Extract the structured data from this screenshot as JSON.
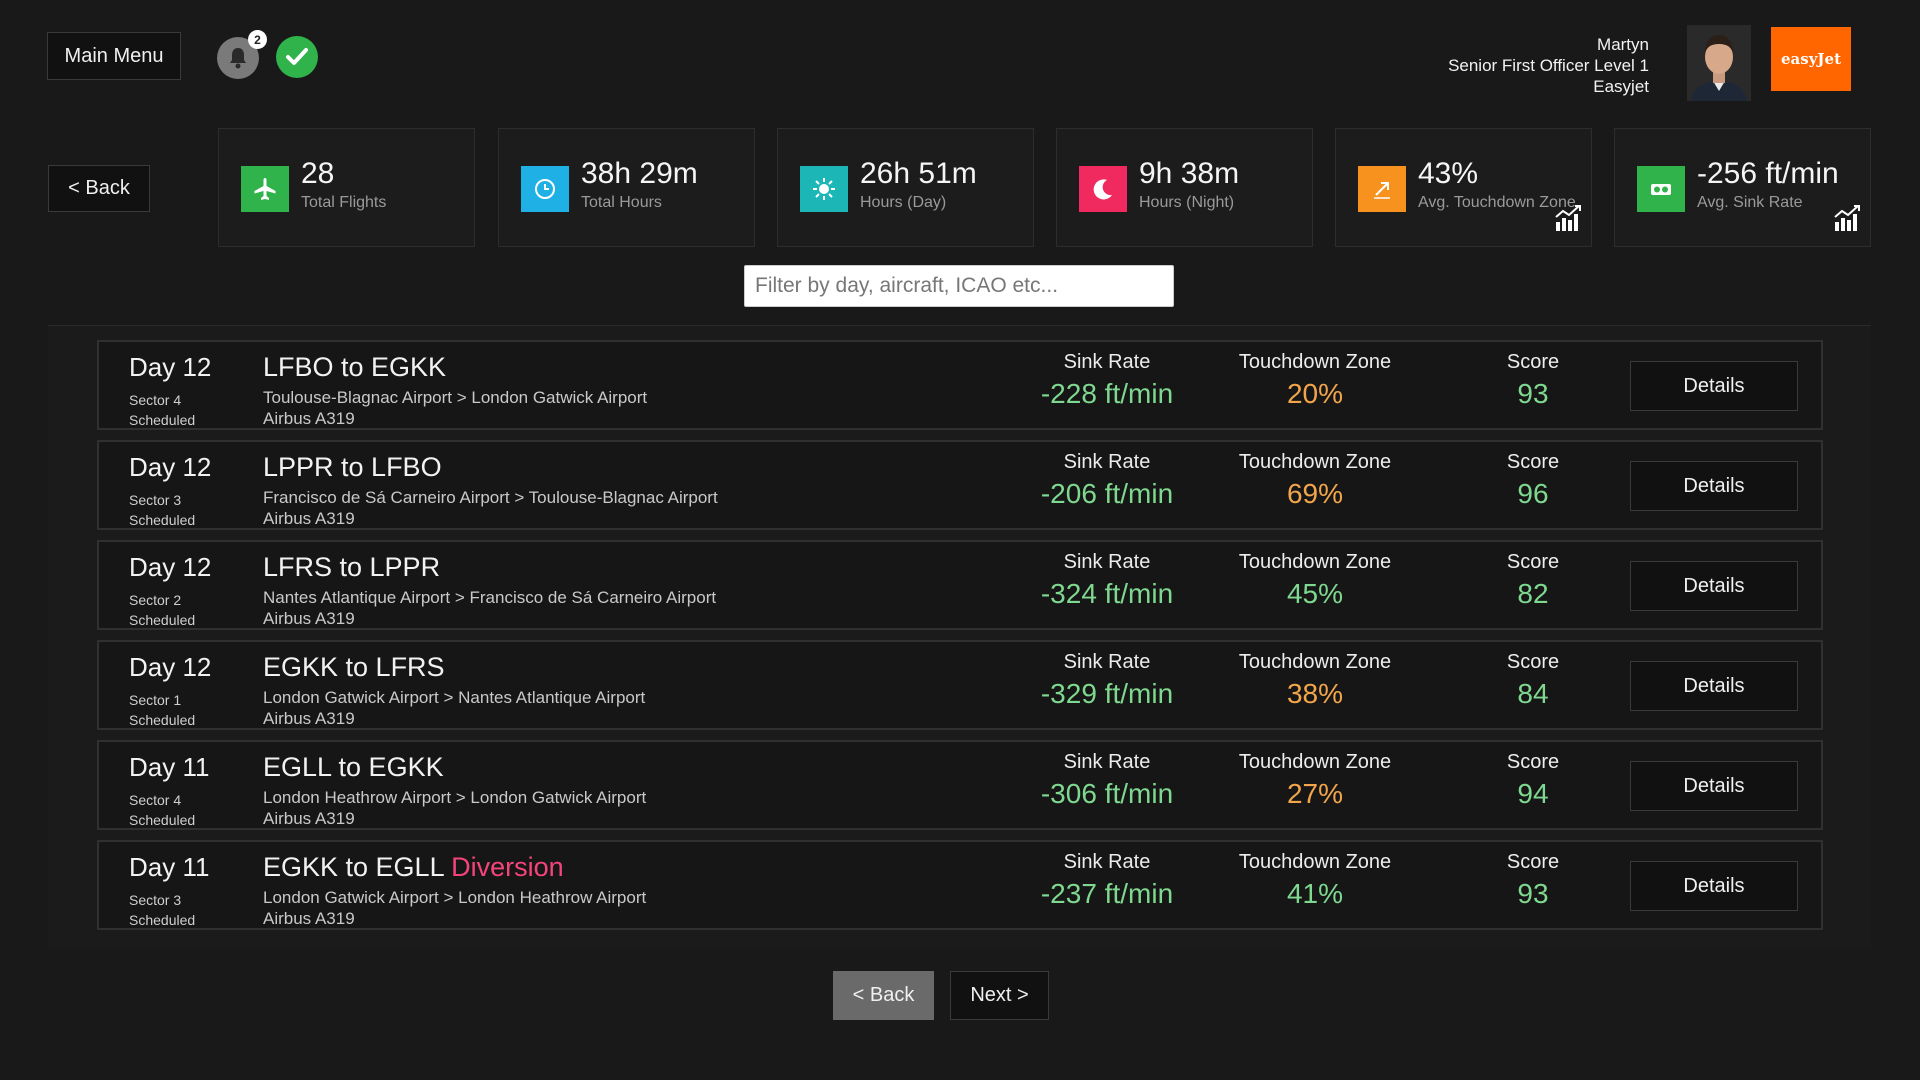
{
  "header": {
    "main_menu_label": "Main Menu",
    "notification_count": "2",
    "profile": {
      "name": "Martyn",
      "rank": "Senior First Officer Level 1",
      "airline": "Easyjet"
    },
    "logo_text": "easyJet"
  },
  "nav": {
    "back_label": "< Back"
  },
  "stats": [
    {
      "value": "28",
      "label": "Total Flights",
      "color": "#2fb34a",
      "icon": "airplane-icon"
    },
    {
      "value": "38h 29m",
      "label": "Total Hours",
      "color": "#1fb1e6",
      "icon": "clock-icon"
    },
    {
      "value": "26h 51m",
      "label": "Hours (Day)",
      "color": "#1cb6b6",
      "icon": "sun-icon"
    },
    {
      "value": "9h 38m",
      "label": "Hours (Night)",
      "color": "#f02a5f",
      "icon": "moon-icon"
    },
    {
      "value": "43%",
      "label": "Avg. Touchdown Zone",
      "color": "#f7921e",
      "icon": "touchdown-icon"
    },
    {
      "value": "-256 ft/min",
      "label": "Avg. Sink Rate",
      "color": "#2fb34a",
      "icon": "sink-rate-icon"
    }
  ],
  "filter": {
    "placeholder": "Filter by day, aircraft, ICAO etc..."
  },
  "columns": {
    "sink": "Sink Rate",
    "tz": "Touchdown Zone",
    "score": "Score",
    "details": "Details"
  },
  "flights": [
    {
      "day": "Day 12",
      "sector": "Sector 4",
      "status": "Scheduled",
      "route": "LFBO to EGKK",
      "flag": "",
      "airports": "Toulouse-Blagnac Airport > London Gatwick Airport",
      "aircraft": "Airbus A319",
      "sink": "-228 ft/min",
      "tz": "20%",
      "tz_color": "orange",
      "score": "93"
    },
    {
      "day": "Day 12",
      "sector": "Sector 3",
      "status": "Scheduled",
      "route": "LPPR to LFBO",
      "flag": "",
      "airports": "Francisco de Sá Carneiro Airport > Toulouse-Blagnac Airport",
      "aircraft": "Airbus A319",
      "sink": "-206 ft/min",
      "tz": "69%",
      "tz_color": "orange",
      "score": "96"
    },
    {
      "day": "Day 12",
      "sector": "Sector 2",
      "status": "Scheduled",
      "route": "LFRS to LPPR",
      "flag": "",
      "airports": "Nantes Atlantique Airport > Francisco de Sá Carneiro Airport",
      "aircraft": "Airbus A319",
      "sink": "-324 ft/min",
      "tz": "45%",
      "tz_color": "green",
      "score": "82"
    },
    {
      "day": "Day 12",
      "sector": "Sector 1",
      "status": "Scheduled",
      "route": "EGKK to LFRS",
      "flag": "",
      "airports": "London Gatwick Airport > Nantes Atlantique Airport",
      "aircraft": "Airbus A319",
      "sink": "-329 ft/min",
      "tz": "38%",
      "tz_color": "orange",
      "score": "84"
    },
    {
      "day": "Day 11",
      "sector": "Sector 4",
      "status": "Scheduled",
      "route": "EGLL to EGKK",
      "flag": "",
      "airports": "London Heathrow Airport > London Gatwick Airport",
      "aircraft": "Airbus A319",
      "sink": "-306 ft/min",
      "tz": "27%",
      "tz_color": "orange",
      "score": "94"
    },
    {
      "day": "Day 11",
      "sector": "Sector 3",
      "status": "Scheduled",
      "route": "EGKK to EGLL",
      "flag": "Diversion",
      "airports": "London Gatwick Airport > London Heathrow Airport",
      "aircraft": "Airbus A319",
      "sink": "-237 ft/min",
      "tz": "41%",
      "tz_color": "green",
      "score": "93"
    }
  ],
  "pagination": {
    "back_label": "< Back",
    "next_label": "Next >"
  }
}
